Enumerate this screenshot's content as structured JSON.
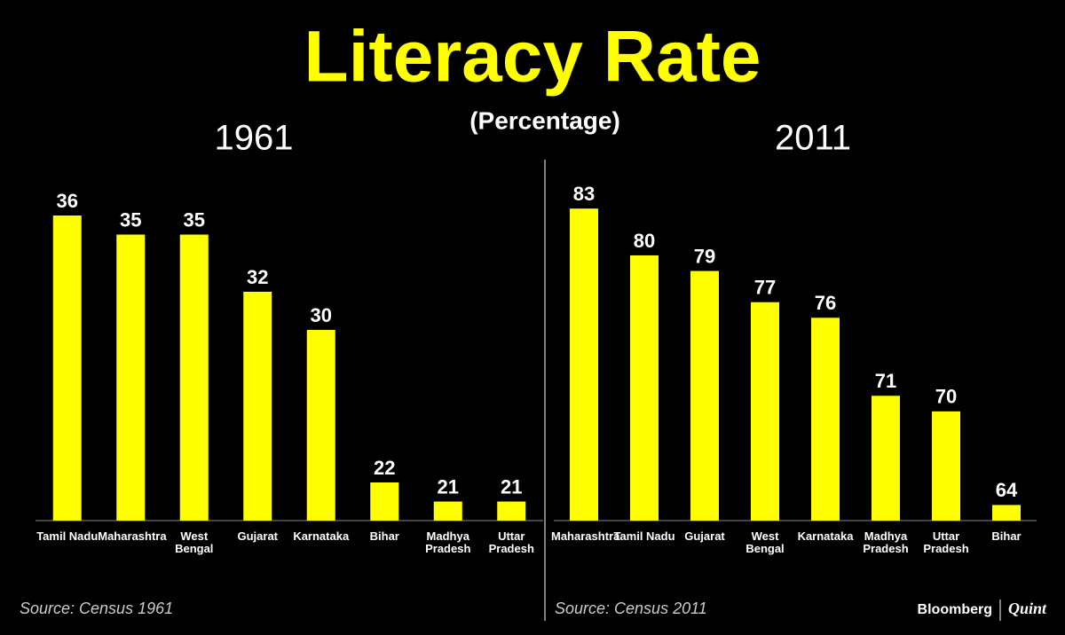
{
  "title": "Literacy Rate",
  "subtitle": "(Percentage)",
  "brand": {
    "left": "Bloomberg",
    "right": "Quint"
  },
  "chart_data": [
    {
      "type": "bar",
      "title": "1961",
      "source": "Source: Census 1961",
      "color": "#ffff00",
      "categories": [
        "Tamil Nadu",
        "Maharashtra",
        "West Bengal",
        "Gujarat",
        "Karnataka",
        "Bihar",
        "Madhya Pradesh",
        "Uttar Pradesh"
      ],
      "values": [
        36,
        35,
        35,
        32,
        30,
        22,
        21,
        21
      ],
      "ylim": [
        20,
        38
      ]
    },
    {
      "type": "bar",
      "title": "2011",
      "source": "Source: Census 2011",
      "color": "#ffff00",
      "categories": [
        "Maharashtra",
        "Tamil Nadu",
        "Gujarat",
        "West Bengal",
        "Karnataka",
        "Madhya Pradesh",
        "Uttar Pradesh",
        "Bihar"
      ],
      "values": [
        83,
        80,
        79,
        77,
        76,
        71,
        70,
        64
      ],
      "ylim": [
        63,
        85
      ]
    }
  ]
}
